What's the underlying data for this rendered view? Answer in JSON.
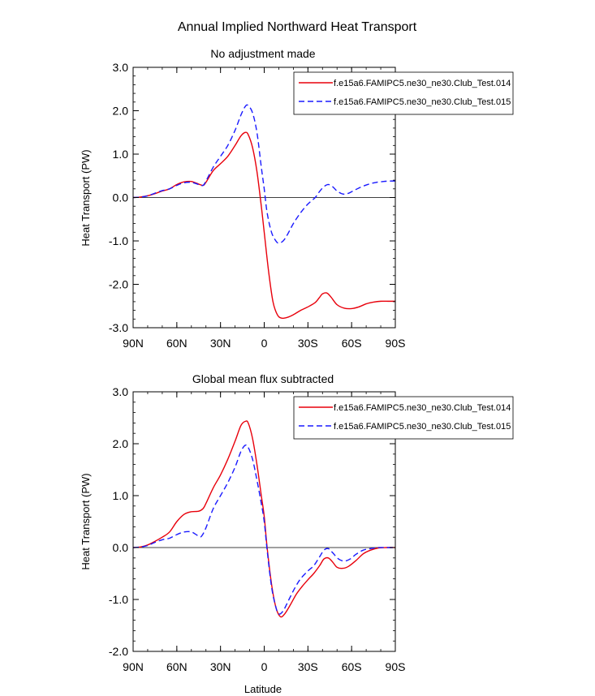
{
  "figure": {
    "title": "Annual Implied Northward Heat Transport"
  },
  "chart_data": [
    {
      "type": "line",
      "title": "No adjustment made",
      "xlabel": "",
      "ylabel": "Heat Transport (PW)",
      "xlim": [
        -90,
        90
      ],
      "ylim": [
        -3.0,
        3.0
      ],
      "xticks": [
        {
          "value": -90,
          "label": "90N"
        },
        {
          "value": -60,
          "label": "60N"
        },
        {
          "value": -30,
          "label": "30N"
        },
        {
          "value": 0,
          "label": "0"
        },
        {
          "value": 30,
          "label": "30S"
        },
        {
          "value": 60,
          "label": "60S"
        },
        {
          "value": 90,
          "label": "90S"
        }
      ],
      "yticks": [
        {
          "value": 3.0,
          "label": "3.0"
        },
        {
          "value": 2.0,
          "label": "2.0"
        },
        {
          "value": 1.0,
          "label": "1.0"
        },
        {
          "value": 0.0,
          "label": "0.0"
        },
        {
          "value": -1.0,
          "label": "-1.0"
        },
        {
          "value": -2.0,
          "label": "-2.0"
        },
        {
          "value": -3.0,
          "label": "-3.0"
        }
      ],
      "zero_line": true,
      "legend_position": "top-right",
      "series": [
        {
          "name": "f.e15a6.FAMIPC5.ne30_ne30.Club_Test.014",
          "color": "#e8000b",
          "dash": "solid",
          "points": [
            [
              -90,
              0.0
            ],
            [
              -85,
              0.01
            ],
            [
              -80,
              0.04
            ],
            [
              -75,
              0.09
            ],
            [
              -70,
              0.15
            ],
            [
              -65,
              0.2
            ],
            [
              -60,
              0.3
            ],
            [
              -55,
              0.36
            ],
            [
              -50,
              0.37
            ],
            [
              -45,
              0.31
            ],
            [
              -42,
              0.28
            ],
            [
              -40,
              0.35
            ],
            [
              -35,
              0.62
            ],
            [
              -30,
              0.78
            ],
            [
              -25,
              0.95
            ],
            [
              -20,
              1.2
            ],
            [
              -16,
              1.42
            ],
            [
              -13,
              1.5
            ],
            [
              -11,
              1.45
            ],
            [
              -8,
              1.15
            ],
            [
              -5,
              0.6
            ],
            [
              -2,
              -0.2
            ],
            [
              0,
              -0.8
            ],
            [
              3,
              -1.7
            ],
            [
              6,
              -2.4
            ],
            [
              9,
              -2.7
            ],
            [
              12,
              -2.78
            ],
            [
              16,
              -2.76
            ],
            [
              20,
              -2.7
            ],
            [
              25,
              -2.6
            ],
            [
              30,
              -2.52
            ],
            [
              35,
              -2.42
            ],
            [
              38,
              -2.3
            ],
            [
              40,
              -2.22
            ],
            [
              43,
              -2.2
            ],
            [
              46,
              -2.3
            ],
            [
              50,
              -2.47
            ],
            [
              55,
              -2.55
            ],
            [
              60,
              -2.56
            ],
            [
              65,
              -2.52
            ],
            [
              70,
              -2.45
            ],
            [
              75,
              -2.41
            ],
            [
              80,
              -2.39
            ],
            [
              85,
              -2.39
            ],
            [
              90,
              -2.39
            ]
          ]
        },
        {
          "name": "f.e15a6.FAMIPC5.ne30_ne30.Club_Test.015",
          "color": "#1a1aff",
          "dash": "dashed",
          "points": [
            [
              -90,
              0.0
            ],
            [
              -85,
              0.01
            ],
            [
              -80,
              0.04
            ],
            [
              -75,
              0.1
            ],
            [
              -70,
              0.16
            ],
            [
              -65,
              0.2
            ],
            [
              -60,
              0.28
            ],
            [
              -55,
              0.34
            ],
            [
              -50,
              0.35
            ],
            [
              -45,
              0.3
            ],
            [
              -42,
              0.28
            ],
            [
              -40,
              0.38
            ],
            [
              -35,
              0.7
            ],
            [
              -30,
              0.95
            ],
            [
              -25,
              1.2
            ],
            [
              -20,
              1.55
            ],
            [
              -16,
              1.9
            ],
            [
              -13,
              2.1
            ],
            [
              -11,
              2.12
            ],
            [
              -8,
              1.95
            ],
            [
              -5,
              1.5
            ],
            [
              -2,
              0.7
            ],
            [
              0,
              0.2
            ],
            [
              2,
              -0.35
            ],
            [
              5,
              -0.8
            ],
            [
              8,
              -1.0
            ],
            [
              10,
              -1.05
            ],
            [
              13,
              -1.0
            ],
            [
              16,
              -0.85
            ],
            [
              20,
              -0.6
            ],
            [
              25,
              -0.35
            ],
            [
              30,
              -0.15
            ],
            [
              35,
              0.0
            ],
            [
              38,
              0.14
            ],
            [
              41,
              0.25
            ],
            [
              44,
              0.3
            ],
            [
              47,
              0.25
            ],
            [
              50,
              0.15
            ],
            [
              54,
              0.08
            ],
            [
              58,
              0.1
            ],
            [
              62,
              0.17
            ],
            [
              67,
              0.25
            ],
            [
              72,
              0.31
            ],
            [
              77,
              0.35
            ],
            [
              82,
              0.37
            ],
            [
              86,
              0.38
            ],
            [
              90,
              0.38
            ]
          ]
        }
      ]
    },
    {
      "type": "line",
      "title": "Global mean flux subtracted",
      "xlabel": "Latitude",
      "ylabel": "Heat Transport (PW)",
      "xlim": [
        -90,
        90
      ],
      "ylim": [
        -2.0,
        3.0
      ],
      "xticks": [
        {
          "value": -90,
          "label": "90N"
        },
        {
          "value": -60,
          "label": "60N"
        },
        {
          "value": -30,
          "label": "30N"
        },
        {
          "value": 0,
          "label": "0"
        },
        {
          "value": 30,
          "label": "30S"
        },
        {
          "value": 60,
          "label": "60S"
        },
        {
          "value": 90,
          "label": "90S"
        }
      ],
      "yticks": [
        {
          "value": 3.0,
          "label": "3.0"
        },
        {
          "value": 2.0,
          "label": "2.0"
        },
        {
          "value": 1.0,
          "label": "1.0"
        },
        {
          "value": 0.0,
          "label": "0.0"
        },
        {
          "value": -1.0,
          "label": "-1.0"
        },
        {
          "value": -2.0,
          "label": "-2.0"
        }
      ],
      "zero_line": true,
      "legend_position": "top-right",
      "series": [
        {
          "name": "f.e15a6.FAMIPC5.ne30_ne30.Club_Test.014",
          "color": "#e8000b",
          "dash": "solid",
          "points": [
            [
              -90,
              0.0
            ],
            [
              -85,
              0.01
            ],
            [
              -80,
              0.05
            ],
            [
              -75,
              0.12
            ],
            [
              -70,
              0.2
            ],
            [
              -65,
              0.3
            ],
            [
              -60,
              0.5
            ],
            [
              -55,
              0.64
            ],
            [
              -50,
              0.69
            ],
            [
              -45,
              0.7
            ],
            [
              -42,
              0.75
            ],
            [
              -40,
              0.85
            ],
            [
              -35,
              1.15
            ],
            [
              -30,
              1.4
            ],
            [
              -25,
              1.7
            ],
            [
              -20,
              2.05
            ],
            [
              -16,
              2.35
            ],
            [
              -13,
              2.43
            ],
            [
              -11,
              2.4
            ],
            [
              -8,
              2.1
            ],
            [
              -5,
              1.6
            ],
            [
              -2,
              1.0
            ],
            [
              0,
              0.6
            ],
            [
              2,
              0.0
            ],
            [
              5,
              -0.7
            ],
            [
              8,
              -1.15
            ],
            [
              11,
              -1.33
            ],
            [
              14,
              -1.28
            ],
            [
              18,
              -1.1
            ],
            [
              22,
              -0.9
            ],
            [
              26,
              -0.75
            ],
            [
              30,
              -0.62
            ],
            [
              34,
              -0.5
            ],
            [
              38,
              -0.35
            ],
            [
              41,
              -0.22
            ],
            [
              44,
              -0.2
            ],
            [
              47,
              -0.28
            ],
            [
              50,
              -0.38
            ],
            [
              54,
              -0.4
            ],
            [
              58,
              -0.36
            ],
            [
              63,
              -0.25
            ],
            [
              68,
              -0.12
            ],
            [
              73,
              -0.05
            ],
            [
              78,
              -0.01
            ],
            [
              84,
              0.0
            ],
            [
              90,
              0.0
            ]
          ]
        },
        {
          "name": "f.e15a6.FAMIPC5.ne30_ne30.Club_Test.015",
          "color": "#1a1aff",
          "dash": "dashed",
          "points": [
            [
              -90,
              0.0
            ],
            [
              -85,
              0.01
            ],
            [
              -80,
              0.04
            ],
            [
              -75,
              0.1
            ],
            [
              -70,
              0.15
            ],
            [
              -65,
              0.18
            ],
            [
              -60,
              0.25
            ],
            [
              -55,
              0.3
            ],
            [
              -50,
              0.3
            ],
            [
              -45,
              0.22
            ],
            [
              -43,
              0.22
            ],
            [
              -40,
              0.38
            ],
            [
              -35,
              0.75
            ],
            [
              -30,
              1.0
            ],
            [
              -25,
              1.25
            ],
            [
              -20,
              1.55
            ],
            [
              -16,
              1.85
            ],
            [
              -13,
              1.97
            ],
            [
              -11,
              1.93
            ],
            [
              -8,
              1.7
            ],
            [
              -5,
              1.3
            ],
            [
              -2,
              0.85
            ],
            [
              0,
              0.5
            ],
            [
              2,
              -0.05
            ],
            [
              5,
              -0.75
            ],
            [
              8,
              -1.15
            ],
            [
              10,
              -1.28
            ],
            [
              13,
              -1.22
            ],
            [
              17,
              -1.0
            ],
            [
              21,
              -0.78
            ],
            [
              25,
              -0.6
            ],
            [
              30,
              -0.45
            ],
            [
              34,
              -0.35
            ],
            [
              38,
              -0.18
            ],
            [
              41,
              -0.05
            ],
            [
              44,
              -0.02
            ],
            [
              47,
              -0.1
            ],
            [
              51,
              -0.22
            ],
            [
              55,
              -0.26
            ],
            [
              59,
              -0.22
            ],
            [
              63,
              -0.13
            ],
            [
              68,
              -0.05
            ],
            [
              73,
              -0.02
            ],
            [
              78,
              0.0
            ],
            [
              84,
              0.0
            ],
            [
              90,
              0.0
            ]
          ]
        }
      ]
    }
  ]
}
